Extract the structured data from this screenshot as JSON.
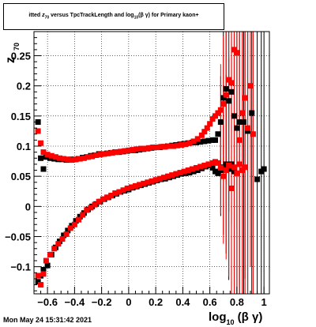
{
  "title_parts": {
    "prefix": "itted ",
    "z": "z",
    "z_sub": "70",
    "middle": " versus TpcTrackLength and log",
    "log_sub": "10",
    "suffix": "(β γ) for Primary kaon+"
  },
  "timestamp": "Mon May 24 15:31:42 2021",
  "axis": {
    "xlabel_main": "log",
    "xlabel_sub": "10",
    "xlabel_tail": " (β γ)",
    "ylabel_main": "z",
    "ylabel_sub": "70"
  },
  "chart_data": {
    "type": "scatter",
    "title": "itted z70 versus TpcTrackLength and log10(β γ) for Primary kaon+",
    "xlabel": "log10 (β γ)",
    "ylabel": "z70",
    "xlim": [
      -0.7,
      1.04
    ],
    "ylim": [
      -0.145,
      0.29
    ],
    "grid": true,
    "x_ticks": [
      -0.6,
      -0.4,
      -0.2,
      0,
      0.2,
      0.4,
      0.6,
      0.8,
      1
    ],
    "x_tick_labels": [
      "−0.6",
      "−0.4",
      "−0.2",
      "0",
      "0.2",
      "0.4",
      "0.6",
      "0.8",
      "1"
    ],
    "y_ticks": [
      -0.1,
      -0.05,
      0,
      0.05,
      0.1,
      0.15,
      0.2,
      0.25
    ],
    "y_tick_labels": [
      "−0.1",
      "−0.05",
      "0",
      "0.05",
      "0.1",
      "0.15",
      "0.2",
      "0.25"
    ],
    "series": [
      {
        "color": "#000000",
        "marker": "square",
        "upper": [
          [
            -0.67,
            0.14
          ],
          [
            -0.65,
            0.08
          ],
          [
            -0.63,
            0.062
          ],
          [
            -0.61,
            0.082
          ],
          [
            -0.58,
            0.08
          ],
          [
            -0.55,
            0.079
          ],
          [
            -0.52,
            0.078
          ],
          [
            -0.49,
            0.078
          ],
          [
            -0.46,
            0.077
          ],
          [
            -0.43,
            0.078
          ],
          [
            -0.4,
            0.078
          ],
          [
            -0.37,
            0.079
          ],
          [
            -0.34,
            0.081
          ],
          [
            -0.31,
            0.082
          ],
          [
            -0.28,
            0.084
          ],
          [
            -0.25,
            0.085
          ],
          [
            -0.22,
            0.087
          ],
          [
            -0.19,
            0.087
          ],
          [
            -0.16,
            0.088
          ],
          [
            -0.13,
            0.089
          ],
          [
            -0.1,
            0.09
          ],
          [
            -0.07,
            0.09
          ],
          [
            -0.04,
            0.091
          ],
          [
            -0.01,
            0.092
          ],
          [
            0.02,
            0.093
          ],
          [
            0.05,
            0.093
          ],
          [
            0.08,
            0.094
          ],
          [
            0.11,
            0.095
          ],
          [
            0.14,
            0.096
          ],
          [
            0.17,
            0.097
          ],
          [
            0.2,
            0.098
          ],
          [
            0.23,
            0.098
          ],
          [
            0.26,
            0.099
          ],
          [
            0.29,
            0.1
          ],
          [
            0.32,
            0.101
          ],
          [
            0.35,
            0.102
          ],
          [
            0.38,
            0.103
          ],
          [
            0.41,
            0.104
          ],
          [
            0.44,
            0.105
          ],
          [
            0.47,
            0.106
          ],
          [
            0.5,
            0.106
          ],
          [
            0.53,
            0.107
          ],
          [
            0.56,
            0.108
          ],
          [
            0.59,
            0.109
          ],
          [
            0.62,
            0.11
          ],
          [
            0.64,
            0.11
          ],
          [
            0.66,
            0.12
          ],
          [
            0.68,
            0.14
          ],
          [
            0.7,
            0.18
          ],
          [
            0.72,
            0.195
          ],
          [
            0.74,
            0.175
          ],
          [
            0.76,
            0.19
          ],
          [
            0.78,
            0.15
          ],
          [
            0.8,
            0.13
          ],
          [
            0.82,
            0.14
          ],
          [
            0.85,
            0.14
          ],
          [
            0.88,
            0.125
          ],
          [
            0.91,
            0.155
          ],
          [
            0.95,
            0.045
          ],
          [
            0.98,
            0.058
          ],
          [
            1.0,
            0.062
          ]
        ],
        "lower": [
          [
            -0.67,
            -0.125
          ],
          [
            -0.65,
            -0.115
          ],
          [
            -0.63,
            -0.105
          ],
          [
            -0.6,
            -0.098
          ],
          [
            -0.57,
            -0.08
          ],
          [
            -0.54,
            -0.068
          ],
          [
            -0.51,
            -0.058
          ],
          [
            -0.48,
            -0.048
          ],
          [
            -0.45,
            -0.04
          ],
          [
            -0.42,
            -0.032
          ],
          [
            -0.39,
            -0.024
          ],
          [
            -0.36,
            -0.017
          ],
          [
            -0.33,
            -0.011
          ],
          [
            -0.3,
            -0.005
          ],
          [
            -0.27,
            0.0
          ],
          [
            -0.24,
            0.004
          ],
          [
            -0.21,
            0.008
          ],
          [
            -0.18,
            0.012
          ],
          [
            -0.15,
            0.015
          ],
          [
            -0.12,
            0.018
          ],
          [
            -0.09,
            0.021
          ],
          [
            -0.06,
            0.024
          ],
          [
            -0.03,
            0.026
          ],
          [
            0.0,
            0.028
          ],
          [
            0.03,
            0.031
          ],
          [
            0.06,
            0.033
          ],
          [
            0.09,
            0.035
          ],
          [
            0.12,
            0.037
          ],
          [
            0.15,
            0.039
          ],
          [
            0.18,
            0.041
          ],
          [
            0.21,
            0.043
          ],
          [
            0.24,
            0.045
          ],
          [
            0.27,
            0.046
          ],
          [
            0.3,
            0.048
          ],
          [
            0.33,
            0.05
          ],
          [
            0.36,
            0.052
          ],
          [
            0.39,
            0.054
          ],
          [
            0.42,
            0.055
          ],
          [
            0.45,
            0.056
          ],
          [
            0.48,
            0.058
          ],
          [
            0.51,
            0.06
          ],
          [
            0.54,
            0.063
          ],
          [
            0.57,
            0.066
          ],
          [
            0.6,
            0.068
          ],
          [
            0.62,
            0.064
          ],
          [
            0.64,
            0.058
          ],
          [
            0.66,
            0.055
          ],
          [
            0.68,
            0.06
          ],
          [
            0.7,
            0.065
          ],
          [
            0.72,
            0.07
          ],
          [
            0.74,
            0.062
          ],
          [
            0.76,
            0.07
          ],
          [
            0.78,
            0.058
          ]
        ]
      },
      {
        "color": "#ff0000",
        "marker": "square",
        "upper": [
          [
            -0.67,
            0.125
          ],
          [
            -0.65,
            0.105
          ],
          [
            -0.63,
            0.09
          ],
          [
            -0.6,
            0.086
          ],
          [
            -0.57,
            0.084
          ],
          [
            -0.54,
            0.082
          ],
          [
            -0.51,
            0.08
          ],
          [
            -0.48,
            0.079
          ],
          [
            -0.45,
            0.078
          ],
          [
            -0.42,
            0.077
          ],
          [
            -0.39,
            0.078
          ],
          [
            -0.36,
            0.079
          ],
          [
            -0.33,
            0.08
          ],
          [
            -0.3,
            0.082
          ],
          [
            -0.27,
            0.083
          ],
          [
            -0.24,
            0.085
          ],
          [
            -0.21,
            0.086
          ],
          [
            -0.18,
            0.087
          ],
          [
            -0.15,
            0.088
          ],
          [
            -0.12,
            0.089
          ],
          [
            -0.09,
            0.09
          ],
          [
            -0.06,
            0.091
          ],
          [
            -0.03,
            0.092
          ],
          [
            0.0,
            0.093
          ],
          [
            0.03,
            0.094
          ],
          [
            0.06,
            0.095
          ],
          [
            0.09,
            0.096
          ],
          [
            0.12,
            0.096
          ],
          [
            0.15,
            0.097
          ],
          [
            0.18,
            0.098
          ],
          [
            0.21,
            0.098
          ],
          [
            0.24,
            0.099
          ],
          [
            0.27,
            0.099
          ],
          [
            0.3,
            0.1
          ],
          [
            0.33,
            0.1
          ],
          [
            0.36,
            0.101
          ],
          [
            0.39,
            0.102
          ],
          [
            0.42,
            0.103
          ],
          [
            0.45,
            0.105
          ],
          [
            0.48,
            0.108
          ],
          [
            0.51,
            0.112
          ],
          [
            0.54,
            0.118
          ],
          [
            0.56,
            0.124
          ],
          [
            0.58,
            0.13
          ],
          [
            0.6,
            0.137
          ],
          [
            0.62,
            0.145
          ],
          [
            0.64,
            0.15
          ],
          [
            0.66,
            0.155
          ],
          [
            0.68,
            0.16
          ],
          [
            0.7,
            0.17
          ],
          [
            0.72,
            0.185
          ],
          [
            0.74,
            0.21
          ],
          [
            0.76,
            0.205
          ],
          [
            0.78,
            0.26
          ],
          [
            0.8,
            0.255
          ],
          [
            0.82,
            0.11
          ],
          [
            0.84,
            0.155
          ],
          [
            0.86,
            0.18
          ],
          [
            0.88,
            0.13
          ],
          [
            0.9,
            0.2
          ],
          [
            0.92,
            0.12
          ]
        ],
        "lower": [
          [
            -0.67,
            -0.115
          ],
          [
            -0.65,
            -0.13
          ],
          [
            -0.63,
            -0.112
          ],
          [
            -0.61,
            -0.09
          ],
          [
            -0.58,
            -0.08
          ],
          [
            -0.55,
            -0.07
          ],
          [
            -0.52,
            -0.062
          ],
          [
            -0.49,
            -0.054
          ],
          [
            -0.46,
            -0.046
          ],
          [
            -0.43,
            -0.036
          ],
          [
            -0.4,
            -0.03
          ],
          [
            -0.37,
            -0.022
          ],
          [
            -0.34,
            -0.014
          ],
          [
            -0.31,
            -0.006
          ],
          [
            -0.28,
            -0.002
          ],
          [
            -0.25,
            0.003
          ],
          [
            -0.22,
            0.008
          ],
          [
            -0.19,
            0.012
          ],
          [
            -0.16,
            0.015
          ],
          [
            -0.13,
            0.018
          ],
          [
            -0.1,
            0.022
          ],
          [
            -0.07,
            0.024
          ],
          [
            -0.04,
            0.027
          ],
          [
            -0.01,
            0.03
          ],
          [
            0.02,
            0.032
          ],
          [
            0.05,
            0.034
          ],
          [
            0.08,
            0.036
          ],
          [
            0.11,
            0.038
          ],
          [
            0.14,
            0.04
          ],
          [
            0.17,
            0.042
          ],
          [
            0.2,
            0.044
          ],
          [
            0.23,
            0.046
          ],
          [
            0.26,
            0.048
          ],
          [
            0.29,
            0.05
          ],
          [
            0.32,
            0.052
          ],
          [
            0.35,
            0.054
          ],
          [
            0.38,
            0.056
          ],
          [
            0.41,
            0.058
          ],
          [
            0.44,
            0.06
          ],
          [
            0.47,
            0.062
          ],
          [
            0.5,
            0.064
          ],
          [
            0.53,
            0.066
          ],
          [
            0.56,
            0.068
          ],
          [
            0.59,
            0.07
          ],
          [
            0.62,
            0.072
          ],
          [
            0.64,
            0.074
          ],
          [
            0.66,
            0.072
          ],
          [
            0.68,
            0.064
          ],
          [
            0.7,
            0.05
          ],
          [
            0.72,
            0.06
          ],
          [
            0.74,
            0.068
          ],
          [
            0.76,
            0.03
          ],
          [
            0.78,
            0.065
          ],
          [
            0.8,
            0.055
          ],
          [
            0.82,
            0.07
          ],
          [
            0.84,
            0.06
          ],
          [
            0.86,
            0.065
          ]
        ]
      }
    ]
  }
}
